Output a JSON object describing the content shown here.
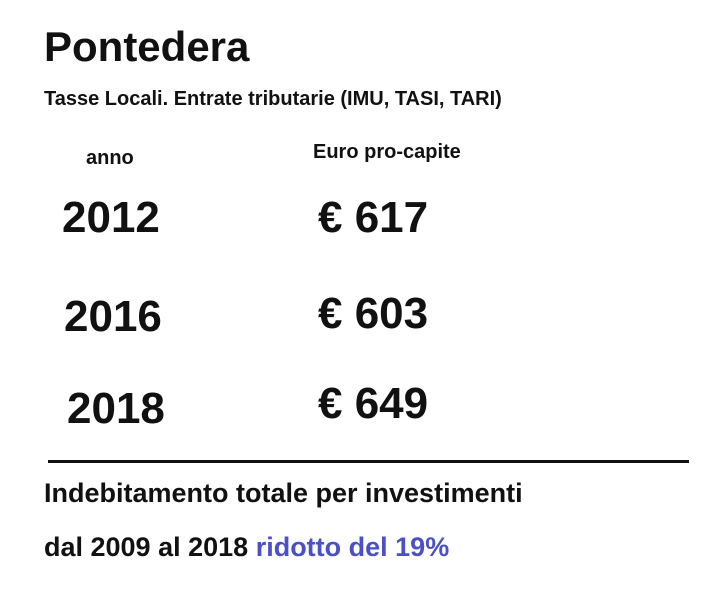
{
  "header": {
    "title": "Pontedera",
    "subtitle": "Tasse Locali. Entrate tributarie  (IMU, TASI, TARI)"
  },
  "table": {
    "columns": [
      "anno",
      "Euro pro-capite"
    ],
    "rows": [
      [
        "2012",
        "€ 617"
      ],
      [
        "2016",
        "€ 603"
      ],
      [
        "2018",
        "€ 649"
      ]
    ]
  },
  "footer": {
    "line1": "Indebitamento totale per investimenti",
    "line2": "dal 2009 al 2018",
    "highlight": "ridotto del 19%"
  }
}
